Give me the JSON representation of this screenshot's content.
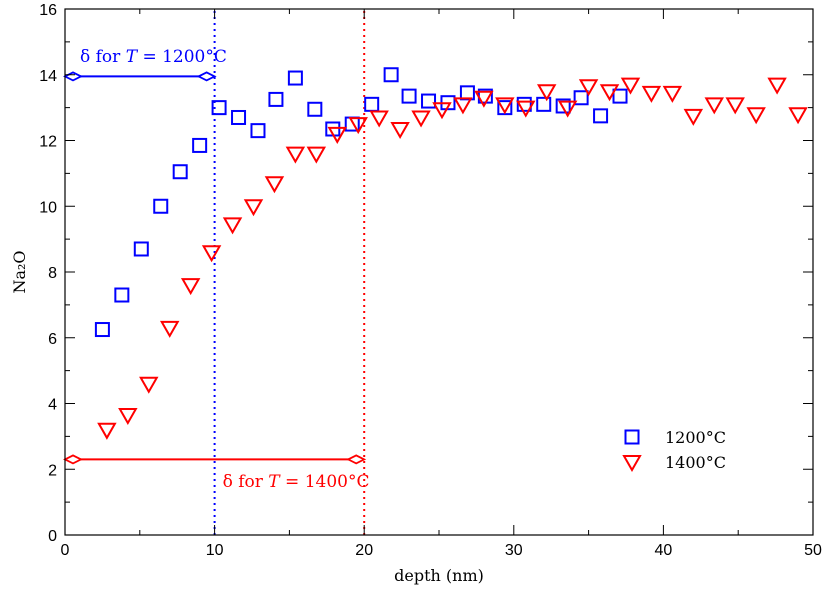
{
  "chart_data": {
    "type": "scatter",
    "xlabel": "depth (nm)",
    "ylabel": "Na₂O",
    "xlim": [
      0,
      50
    ],
    "ylim": [
      0,
      16
    ],
    "xticks": [
      "0",
      "10",
      "20",
      "30",
      "40",
      "50"
    ],
    "yticks": [
      "0",
      "2",
      "4",
      "6",
      "8",
      "10",
      "12",
      "14",
      "16"
    ],
    "legend_position": "bottom-right",
    "grid": false,
    "series": [
      {
        "name": "1200°C",
        "marker": "square",
        "color": "#0000ff",
        "points": [
          [
            2.5,
            6.25
          ],
          [
            3.8,
            7.3
          ],
          [
            5.1,
            8.7
          ],
          [
            6.4,
            10.0
          ],
          [
            7.7,
            11.05
          ],
          [
            9.0,
            11.85
          ],
          [
            10.3,
            13.0
          ],
          [
            11.6,
            12.7
          ],
          [
            12.9,
            12.3
          ],
          [
            14.1,
            13.25
          ],
          [
            15.4,
            13.9
          ],
          [
            16.7,
            12.95
          ],
          [
            17.9,
            12.35
          ],
          [
            19.2,
            12.5
          ],
          [
            20.5,
            13.1
          ],
          [
            21.8,
            14.0
          ],
          [
            23.0,
            13.35
          ],
          [
            24.3,
            13.2
          ],
          [
            25.6,
            13.15
          ],
          [
            26.9,
            13.45
          ],
          [
            28.1,
            13.35
          ],
          [
            29.4,
            13.0
          ],
          [
            30.7,
            13.1
          ],
          [
            32.0,
            13.1
          ],
          [
            33.3,
            13.05
          ],
          [
            34.5,
            13.3
          ],
          [
            35.8,
            12.75
          ],
          [
            37.1,
            13.35
          ]
        ]
      },
      {
        "name": "1400°C",
        "marker": "triangle-down",
        "color": "#ff0000",
        "points": [
          [
            2.8,
            3.2
          ],
          [
            4.2,
            3.65
          ],
          [
            5.6,
            4.6
          ],
          [
            7.0,
            6.3
          ],
          [
            8.4,
            7.6
          ],
          [
            9.8,
            8.6
          ],
          [
            11.2,
            9.45
          ],
          [
            12.6,
            10.0
          ],
          [
            14.0,
            10.7
          ],
          [
            15.4,
            11.6
          ],
          [
            16.8,
            11.6
          ],
          [
            18.2,
            12.2
          ],
          [
            19.6,
            12.5
          ],
          [
            21.0,
            12.7
          ],
          [
            22.4,
            12.35
          ],
          [
            23.8,
            12.7
          ],
          [
            25.2,
            12.95
          ],
          [
            26.6,
            13.1
          ],
          [
            28.0,
            13.3
          ],
          [
            29.4,
            13.1
          ],
          [
            30.8,
            13.0
          ],
          [
            32.2,
            13.5
          ],
          [
            33.6,
            13.0
          ],
          [
            35.0,
            13.65
          ],
          [
            36.4,
            13.5
          ],
          [
            37.8,
            13.7
          ],
          [
            39.2,
            13.45
          ],
          [
            40.6,
            13.45
          ],
          [
            42.0,
            12.75
          ],
          [
            43.4,
            13.1
          ],
          [
            44.8,
            13.1
          ],
          [
            46.2,
            12.8
          ],
          [
            47.6,
            13.7
          ],
          [
            49.0,
            12.8
          ]
        ]
      }
    ],
    "annotations": [
      {
        "id": "delta1200",
        "text_prefix": "δ for ",
        "text_var": "T",
        "text_suffix": " = 1200°C",
        "color": "#0000ff",
        "x_from": 0,
        "x_to": 10,
        "y": 13.95,
        "vline_x": 10
      },
      {
        "id": "delta1400",
        "text_prefix": "δ for ",
        "text_var": "T",
        "text_suffix": " = 1400°C",
        "color": "#ff0000",
        "x_from": 0,
        "x_to": 20,
        "y": 2.3,
        "vline_x": 20
      }
    ]
  }
}
